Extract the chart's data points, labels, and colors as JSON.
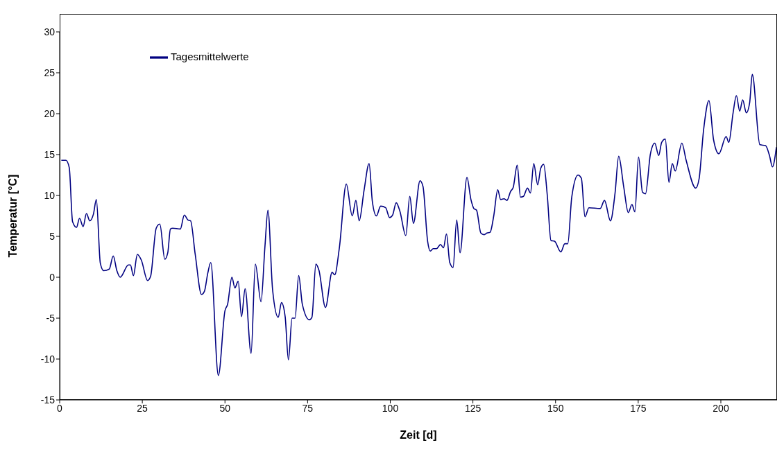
{
  "chart_data": {
    "type": "line",
    "xlabel": "Zeit [d]",
    "ylabel": "Temperatur [°C]",
    "xlim": [
      0,
      217
    ],
    "xticks": [
      0,
      25,
      50,
      75,
      100,
      125,
      150,
      175,
      200
    ],
    "ylim": [
      -15,
      30
    ],
    "yticks": [
      -15,
      -10,
      -5,
      0,
      5,
      10,
      15,
      20,
      25,
      30
    ],
    "grid": false,
    "legend": "top left",
    "marker": "none",
    "line_style": "solid",
    "series": [
      {
        "name": "Tagesmittelwerte",
        "color": "#000080",
        "x": [
          0.5,
          1.9,
          2.9,
          3.9,
          5.1,
          6.0,
          7.1,
          8.1,
          9.1,
          10.2,
          11.1,
          12.3,
          13.3,
          15.0,
          16.2,
          17.3,
          18.3,
          20.8,
          21.4,
          22.3,
          23.5,
          24.7,
          26.6,
          27.5,
          29.2,
          30.3,
          31.8,
          32.7,
          33.5,
          34.2,
          36.5,
          37.7,
          38.8,
          39.6,
          41.0,
          42.9,
          43.8,
          44.8,
          45.7,
          48.0,
          50.0,
          50.8,
          52.1,
          53.0,
          54.0,
          55.0,
          56.1,
          57.9,
          59.2,
          60.9,
          62.1,
          63.0,
          64.4,
          66.1,
          67.1,
          68.2,
          69.2,
          70.3,
          71.2,
          72.3,
          73.4,
          75.5,
          76.3,
          77.5,
          78.4,
          80.4,
          82.4,
          83.2,
          84.6,
          86.7,
          88.5,
          89.6,
          90.6,
          92.1,
          93.6,
          94.6,
          95.8,
          97.1,
          98.6,
          99.8,
          100.7,
          101.8,
          102.9,
          104.7,
          105.9,
          107.0,
          109.0,
          109.9,
          111.3,
          112.1,
          113.0,
          114.0,
          115.2,
          116.1,
          117.0,
          118.0,
          119.0,
          120.1,
          121.1,
          123.2,
          124.4,
          125.3,
          126.1,
          127.4,
          128.4,
          129.2,
          130.2,
          131.3,
          132.5,
          133.4,
          134.4,
          135.3,
          136.4,
          137.2,
          138.4,
          139.4,
          140.3,
          141.5,
          142.4,
          143.4,
          144.6,
          145.5,
          146.4,
          147.5,
          148.6,
          149.7,
          151.6,
          152.8,
          153.7,
          154.9,
          156.8,
          157.8,
          158.9,
          160.1,
          163.5,
          164.8,
          166.6,
          168.0,
          169.1,
          170.6,
          172.0,
          173.1,
          174.0,
          175.1,
          176.3,
          177.2,
          178.7,
          180.0,
          181.2,
          182.1,
          183.2,
          184.3,
          185.3,
          186.2,
          188.2,
          189.5,
          192.4,
          193.4,
          194.8,
          196.4,
          197.8,
          199.4,
          201.6,
          202.4,
          203.7,
          204.7,
          205.7,
          206.6,
          207.7,
          208.7,
          209.5,
          211.8,
          213.5,
          214.7,
          215.6,
          216.8
        ],
        "values": [
          14.3,
          14.3,
          13.4,
          6.8,
          6.1,
          7.2,
          6.2,
          7.8,
          6.9,
          7.7,
          9.5,
          1.7,
          0.8,
          1.0,
          2.6,
          0.8,
          0.0,
          1.5,
          1.5,
          0.2,
          2.8,
          2.1,
          -0.4,
          0.1,
          6.0,
          6.5,
          2.2,
          3.0,
          5.9,
          6.0,
          5.9,
          7.6,
          7.0,
          6.9,
          2.8,
          -2.1,
          -1.7,
          0.5,
          1.8,
          -12.0,
          -4.1,
          -3.3,
          0.0,
          -1.3,
          -0.5,
          -4.8,
          -1.4,
          -9.3,
          1.6,
          -3.0,
          3.8,
          8.2,
          -1.5,
          -4.9,
          -3.1,
          -4.8,
          -10.1,
          -5.0,
          -5.0,
          0.2,
          -3.3,
          -5.2,
          -4.9,
          1.6,
          0.9,
          -3.7,
          0.6,
          0.3,
          3.6,
          11.4,
          7.5,
          9.4,
          6.9,
          10.7,
          13.9,
          9.2,
          7.5,
          8.7,
          8.5,
          7.3,
          7.6,
          9.1,
          8.1,
          5.1,
          9.9,
          6.6,
          11.8,
          11.1,
          4.4,
          3.2,
          3.5,
          3.5,
          4.0,
          3.6,
          5.3,
          1.8,
          1.2,
          7.0,
          3.0,
          12.2,
          9.5,
          8.4,
          8.2,
          5.4,
          5.2,
          5.4,
          5.5,
          7.5,
          10.7,
          9.5,
          9.6,
          9.4,
          10.5,
          11.0,
          13.7,
          9.8,
          9.9,
          10.9,
          10.3,
          13.9,
          11.3,
          13.3,
          13.8,
          10.0,
          4.5,
          4.4,
          3.1,
          4.1,
          4.1,
          9.8,
          12.5,
          12.1,
          7.4,
          8.5,
          8.4,
          9.4,
          6.9,
          10.3,
          14.8,
          11.1,
          7.9,
          8.9,
          8.0,
          14.7,
          10.4,
          10.2,
          15.1,
          16.4,
          14.9,
          16.5,
          16.9,
          11.6,
          13.9,
          13.0,
          16.4,
          14.3,
          10.9,
          12.0,
          18.1,
          21.6,
          16.8,
          15.1,
          17.2,
          16.5,
          20.1,
          22.2,
          20.3,
          21.7,
          20.1,
          21.3,
          24.8,
          16.2,
          16.1,
          14.9,
          13.5,
          15.9
        ]
      }
    ]
  }
}
